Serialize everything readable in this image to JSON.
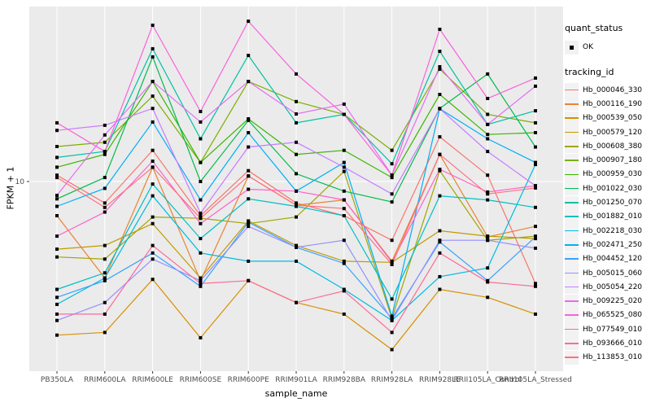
{
  "chart_data": {
    "type": "line",
    "title": "",
    "xlabel": "sample_name",
    "ylabel": "FPKM + 1",
    "y_scale": "log10",
    "y_ticks": [
      10
    ],
    "y_tick_labels": [
      "10"
    ],
    "ylim": [
      1.05,
      85
    ],
    "grid": "major",
    "legend_position": "right",
    "marker": "black-square-point",
    "categories": [
      "PB350LA",
      "RRIM600LA",
      "RRIM600LE",
      "RRIM600SE",
      "RRIM600PE",
      "RRIM901LA",
      "RRIM928BA",
      "RRIM928LA",
      "RRIM928LE",
      "RRII105LA_Control",
      "RRII105LA_Stressed"
    ],
    "series": [
      {
        "name": "Hb_000046_330",
        "color": "#F8766D",
        "values": [
          10.8,
          7.7,
          14.6,
          6.6,
          11.4,
          7.7,
          6.6,
          4.9,
          17.2,
          10.8,
          2.9
        ]
      },
      {
        "name": "Hb_000116_190",
        "color": "#EA8331",
        "values": [
          6.6,
          3.1,
          11.9,
          3.0,
          10.7,
          7.5,
          8.0,
          3.8,
          13.9,
          5.1,
          5.8
        ]
      },
      {
        "name": "Hb_000539_050",
        "color": "#D89000",
        "values": [
          1.55,
          1.6,
          3.05,
          1.5,
          3.0,
          2.3,
          2.0,
          1.3,
          2.7,
          2.45,
          2.0
        ]
      },
      {
        "name": "Hb_000579_120",
        "color": "#C09B00",
        "values": [
          4.4,
          4.6,
          6.0,
          3.1,
          6.2,
          4.6,
          3.8,
          3.75,
          5.5,
          5.15,
          5.0
        ]
      },
      {
        "name": "Hb_000608_380",
        "color": "#A3A500",
        "values": [
          4.0,
          3.9,
          6.5,
          6.4,
          6.0,
          6.5,
          11.3,
          1.9,
          11.4,
          4.9,
          5.15
        ]
      },
      {
        "name": "Hb_000907_180",
        "color": "#7CAE00",
        "values": [
          15.3,
          16.1,
          28.2,
          12.6,
          33.7,
          26.4,
          22.6,
          14.6,
          39.1,
          22.6,
          20.4
        ]
      },
      {
        "name": "Hb_000959_030",
        "color": "#39B600",
        "values": [
          11.9,
          13.9,
          33.7,
          12.6,
          21.4,
          13.9,
          14.6,
          10.5,
          28.8,
          17.7,
          18.1
        ]
      },
      {
        "name": "Hb_001022_030",
        "color": "#00BB4E",
        "values": [
          8.1,
          10.5,
          45.4,
          10.0,
          21.0,
          11.0,
          8.9,
          7.8,
          24.3,
          36.9,
          15.2
        ]
      },
      {
        "name": "Hb_001250_070",
        "color": "#00C1A3",
        "values": [
          13.4,
          14.4,
          50.1,
          16.8,
          46.2,
          20.4,
          22.6,
          12.4,
          48.6,
          20.0,
          23.6
        ]
      },
      {
        "name": "Hb_001882_010",
        "color": "#00BFC4",
        "values": [
          2.7,
          3.3,
          9.7,
          5.0,
          8.1,
          7.4,
          6.6,
          2.4,
          8.4,
          8.0,
          7.3
        ]
      },
      {
        "name": "Hb_002218_030",
        "color": "#00BAE0",
        "values": [
          2.25,
          3.1,
          8.4,
          4.2,
          3.8,
          3.8,
          2.7,
          1.85,
          3.15,
          3.5,
          12.3
        ]
      },
      {
        "name": "Hb_002471_250",
        "color": "#00B0F6",
        "values": [
          7.4,
          9.2,
          20.6,
          8.0,
          18.1,
          8.9,
          12.6,
          1.95,
          24.2,
          16.8,
          12.6
        ]
      },
      {
        "name": "Hb_004452_120",
        "color": "#35A2FF",
        "values": [
          2.45,
          3.0,
          4.2,
          2.8,
          6.1,
          4.5,
          3.7,
          1.9,
          4.8,
          3.0,
          5.1
        ]
      },
      {
        "name": "Hb_005015_060",
        "color": "#9590FF",
        "values": [
          1.85,
          2.3,
          3.9,
          3.0,
          5.8,
          4.5,
          4.9,
          1.85,
          4.9,
          4.9,
          4.45
        ]
      },
      {
        "name": "Hb_005054_220",
        "color": "#C77CFF",
        "values": [
          18.6,
          19.8,
          24.3,
          6.8,
          15.2,
          16.1,
          11.9,
          8.6,
          24.2,
          14.4,
          9.5
        ]
      },
      {
        "name": "Hb_009225_020",
        "color": "#E76BF3",
        "values": [
          8.45,
          17.6,
          33.7,
          20.6,
          33.7,
          22.7,
          25.6,
          10.8,
          40.3,
          20.0,
          31.8
        ]
      },
      {
        "name": "Hb_065525_080",
        "color": "#FA62DB",
        "values": [
          20.4,
          14.4,
          66.7,
          23.4,
          70.0,
          36.9,
          22.6,
          10.8,
          63.5,
          27.4,
          35.1
        ]
      },
      {
        "name": "Hb_077549_010",
        "color": "#FF61C9",
        "values": [
          5.15,
          6.9,
          12.8,
          6.0,
          9.1,
          8.9,
          8.0,
          3.75,
          11.6,
          8.8,
          9.5
        ]
      },
      {
        "name": "Hb_093666_010",
        "color": "#FF6A98",
        "values": [
          2.0,
          2.0,
          4.6,
          2.9,
          3.0,
          2.3,
          2.65,
          1.6,
          4.2,
          2.95,
          2.8
        ]
      },
      {
        "name": "Hb_113853_010",
        "color": "#FC717F",
        "values": [
          10.5,
          7.3,
          11.9,
          6.4,
          10.7,
          7.5,
          7.2,
          3.65,
          13.9,
          8.6,
          9.25
        ]
      }
    ]
  },
  "legend": {
    "quant_status_title": "quant_status",
    "quant_status_items": [
      {
        "label": "OK",
        "marker": "black-point"
      }
    ],
    "tracking_title": "tracking_id"
  },
  "axes": {
    "x_title": "sample_name",
    "y_title": "FPKM + 1"
  },
  "colors": {
    "panel_bg": "#EBEBEB",
    "grid": "#FFFFFF",
    "tick_label": "#4D4D4D",
    "tick_mark": "#333333",
    "point": "#000000",
    "legend_key_bg": "#F2F2F2",
    "page_bg": "#FFFFFF"
  }
}
